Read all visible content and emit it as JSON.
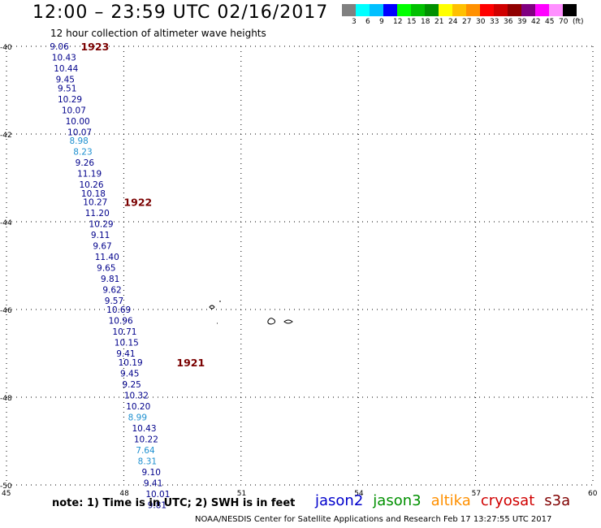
{
  "header": {
    "title": "12:00 – 23:59 UTC 02/16/2017",
    "subtitle": "12 hour collection of altimeter wave heights"
  },
  "scale": {
    "colors": [
      "#808080",
      "#00ffff",
      "#00c0ff",
      "#0000ff",
      "#00ff00",
      "#00c000",
      "#009000",
      "#ffff00",
      "#ffc000",
      "#ff9000",
      "#ff0000",
      "#d00000",
      "#900000",
      "#800080",
      "#ff00ff",
      "#ff90ff",
      "#000000"
    ],
    "labels": [
      "3",
      "6",
      "9",
      "12",
      "15",
      "18",
      "21",
      "24",
      "27",
      "30",
      "33",
      "36",
      "39",
      "42",
      "45",
      "70",
      "(ft)"
    ]
  },
  "axes": {
    "lat_ticks": [
      "-40",
      "-42",
      "-44",
      "-46",
      "-48",
      "-50"
    ],
    "lon_ticks": [
      "45",
      "48",
      "51",
      "54",
      "57",
      "60"
    ]
  },
  "measurements": [
    {
      "v": "9.06",
      "lat": -40.0,
      "lon": 46.4,
      "c": "#00008b"
    },
    {
      "v": "10.43",
      "lat": -40.25,
      "lon": 46.45,
      "c": "#00008b"
    },
    {
      "v": "10.44",
      "lat": -40.5,
      "lon": 46.5,
      "c": "#00008b"
    },
    {
      "v": "9.45",
      "lat": -40.75,
      "lon": 46.55,
      "c": "#00008b"
    },
    {
      "v": "9.51",
      "lat": -40.95,
      "lon": 46.6,
      "c": "#00008b"
    },
    {
      "v": "10.29",
      "lat": -41.2,
      "lon": 46.6,
      "c": "#00008b"
    },
    {
      "v": "10.07",
      "lat": -41.45,
      "lon": 46.7,
      "c": "#00008b"
    },
    {
      "v": "10.00",
      "lat": -41.7,
      "lon": 46.8,
      "c": "#00008b"
    },
    {
      "v": "10.07",
      "lat": -41.95,
      "lon": 46.85,
      "c": "#00008b"
    },
    {
      "v": "8.98",
      "lat": -42.15,
      "lon": 46.9,
      "c": "#1e90d0"
    },
    {
      "v": "8.23",
      "lat": -42.4,
      "lon": 47.0,
      "c": "#1e90d0"
    },
    {
      "v": "9.26",
      "lat": -42.65,
      "lon": 47.05,
      "c": "#00008b"
    },
    {
      "v": "11.19",
      "lat": -42.9,
      "lon": 47.1,
      "c": "#00008b"
    },
    {
      "v": "10.26",
      "lat": -43.15,
      "lon": 47.15,
      "c": "#00008b"
    },
    {
      "v": "10.18",
      "lat": -43.35,
      "lon": 47.2,
      "c": "#00008b"
    },
    {
      "v": "10.27",
      "lat": -43.55,
      "lon": 47.25,
      "c": "#00008b"
    },
    {
      "v": "11.20",
      "lat": -43.8,
      "lon": 47.3,
      "c": "#00008b"
    },
    {
      "v": "10.29",
      "lat": -44.05,
      "lon": 47.4,
      "c": "#00008b"
    },
    {
      "v": "9.11",
      "lat": -44.3,
      "lon": 47.45,
      "c": "#00008b"
    },
    {
      "v": "9.67",
      "lat": -44.55,
      "lon": 47.5,
      "c": "#00008b"
    },
    {
      "v": "11.40",
      "lat": -44.8,
      "lon": 47.55,
      "c": "#00008b"
    },
    {
      "v": "9.65",
      "lat": -45.05,
      "lon": 47.6,
      "c": "#00008b"
    },
    {
      "v": "9.81",
      "lat": -45.3,
      "lon": 47.7,
      "c": "#00008b"
    },
    {
      "v": "9.62",
      "lat": -45.55,
      "lon": 47.75,
      "c": "#00008b"
    },
    {
      "v": "9.57",
      "lat": -45.8,
      "lon": 47.8,
      "c": "#00008b"
    },
    {
      "v": "10.69",
      "lat": -46.0,
      "lon": 47.85,
      "c": "#00008b"
    },
    {
      "v": "10.96",
      "lat": -46.25,
      "lon": 47.9,
      "c": "#00008b"
    },
    {
      "v": "10.71",
      "lat": -46.5,
      "lon": 48.0,
      "c": "#00008b"
    },
    {
      "v": "10.15",
      "lat": -46.75,
      "lon": 48.05,
      "c": "#00008b"
    },
    {
      "v": "9.41",
      "lat": -47.0,
      "lon": 48.1,
      "c": "#00008b"
    },
    {
      "v": "10.19",
      "lat": -47.2,
      "lon": 48.15,
      "c": "#00008b"
    },
    {
      "v": "9.45",
      "lat": -47.45,
      "lon": 48.2,
      "c": "#00008b"
    },
    {
      "v": "9.25",
      "lat": -47.7,
      "lon": 48.25,
      "c": "#00008b"
    },
    {
      "v": "10.32",
      "lat": -47.95,
      "lon": 48.3,
      "c": "#00008b"
    },
    {
      "v": "10.20",
      "lat": -48.2,
      "lon": 48.35,
      "c": "#00008b"
    },
    {
      "v": "8.99",
      "lat": -48.45,
      "lon": 48.4,
      "c": "#1e90d0"
    },
    {
      "v": "10.43",
      "lat": -48.7,
      "lon": 48.5,
      "c": "#00008b"
    },
    {
      "v": "10.22",
      "lat": -48.95,
      "lon": 48.55,
      "c": "#00008b"
    },
    {
      "v": "7.64",
      "lat": -49.2,
      "lon": 48.6,
      "c": "#1e90d0"
    },
    {
      "v": "8.31",
      "lat": -49.45,
      "lon": 48.65,
      "c": "#1e90d0"
    },
    {
      "v": "9.10",
      "lat": -49.7,
      "lon": 48.75,
      "c": "#00008b"
    },
    {
      "v": "9.41",
      "lat": -49.95,
      "lon": 48.8,
      "c": "#00008b"
    },
    {
      "v": "10.01",
      "lat": -50.2,
      "lon": 48.85,
      "c": "#00008b"
    },
    {
      "v": "9.81",
      "lat": -50.45,
      "lon": 48.9,
      "c": "#00008b"
    }
  ],
  "pass_times": [
    {
      "t": "1923",
      "lat": -40.0,
      "lon": 47.15
    },
    {
      "t": "1922",
      "lat": -43.55,
      "lon": 48.25
    },
    {
      "t": "1921",
      "lat": -47.2,
      "lon": 49.6
    }
  ],
  "note": "note:  1) Time is in UTC;  2) SWH is in feet",
  "legend": [
    {
      "name": "jason2",
      "color": "#0000cc"
    },
    {
      "name": "jason3",
      "color": "#009000"
    },
    {
      "name": "altika",
      "color": "#ff9000"
    },
    {
      "name": "cryosat",
      "color": "#d00000"
    },
    {
      "name": "s3a",
      "color": "#800000"
    }
  ],
  "credit": "NOAA/NESDIS Center for Satellite Applications and Research    Feb 17 13:27:55 UTC 2017"
}
